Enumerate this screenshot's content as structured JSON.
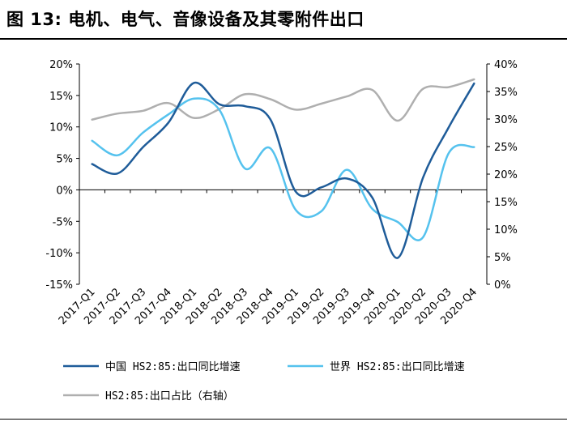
{
  "title": "图 13: 电机、电气、音像设备及其零附件出口",
  "chart_data": {
    "type": "line",
    "categories": [
      "2017-Q1",
      "2017-Q2",
      "2017-Q3",
      "2017-Q4",
      "2018-Q1",
      "2018-Q2",
      "2018-Q3",
      "2018-Q4",
      "2019-Q1",
      "2019-Q2",
      "2019-Q3",
      "2019-Q4",
      "2020-Q1",
      "2020-Q2",
      "2020-Q3",
      "2020-Q4"
    ],
    "y_left": {
      "ylim": [
        -15,
        20
      ],
      "ticks": [
        "-15%",
        "-10%",
        "-5%",
        "0%",
        "5%",
        "10%",
        "15%",
        "20%"
      ]
    },
    "y_right": {
      "ylim": [
        0,
        40
      ],
      "ticks": [
        "0%",
        "5%",
        "10%",
        "15%",
        "20%",
        "25%",
        "30%",
        "35%",
        "40%"
      ]
    },
    "series": [
      {
        "name": "中国 HS2:85:出口同比增速",
        "axis": "left",
        "color": "#1F5C99",
        "values": [
          4.1,
          2.6,
          6.8,
          10.7,
          17.0,
          13.6,
          13.3,
          11.2,
          -0.3,
          0.4,
          1.8,
          -1.2,
          -10.8,
          2.0,
          9.9,
          16.9
        ]
      },
      {
        "name": "世界 HS2:85:出口同比增速",
        "axis": "left",
        "color": "#55C2EE",
        "values": [
          7.8,
          5.5,
          9.1,
          12.0,
          14.5,
          12.7,
          3.4,
          6.6,
          -3.2,
          -3.4,
          3.2,
          -3.0,
          -5.1,
          -7.5,
          5.8,
          6.8
        ]
      },
      {
        "name": "HS2:85:出口占比（右轴）",
        "axis": "right",
        "color": "#AFAFAF",
        "values": [
          29.9,
          31.0,
          31.5,
          32.9,
          30.2,
          31.8,
          34.5,
          33.6,
          31.7,
          32.8,
          34.1,
          35.3,
          29.7,
          35.5,
          35.8,
          37.2
        ]
      }
    ],
    "legend": "bottom",
    "grid": false
  }
}
